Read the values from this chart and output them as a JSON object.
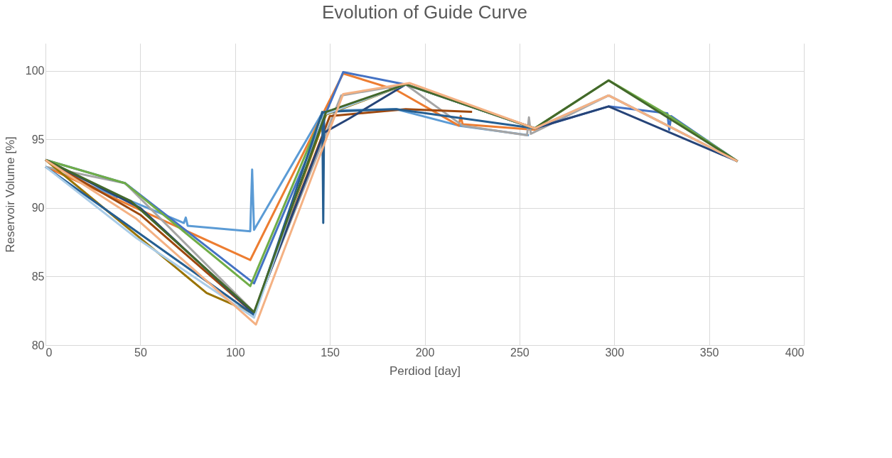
{
  "chart_data": {
    "type": "line",
    "title": "Evolution of Guide Curve",
    "xlabel": "Perdiod [day]",
    "ylabel": "Reservoir Volume [%]",
    "xlim": [
      0,
      400
    ],
    "xticks": [
      0,
      50,
      100,
      150,
      200,
      250,
      300,
      350,
      400
    ],
    "ylim": [
      80,
      102
    ],
    "yticks": [
      80,
      85,
      90,
      95,
      100
    ],
    "grid": true,
    "legend": false,
    "marker": "none",
    "line_style": "solid",
    "series": [
      {
        "color": "#5b9bd5",
        "x": [
          0,
          36,
          37,
          38,
          73,
          74,
          75,
          108,
          109,
          110,
          145,
          150,
          185,
          218,
          255
        ],
        "values": [
          93.0,
          90.9,
          90.6,
          90.9,
          88.9,
          89.3,
          88.7,
          88.3,
          92.8,
          88.4,
          96.7,
          97.1,
          97.2,
          96.0,
          95.3
        ]
      },
      {
        "color": "#ed7d31",
        "x": [
          0,
          108,
          145,
          157,
          185,
          218,
          219,
          220,
          258,
          297,
          365
        ],
        "values": [
          93.0,
          86.2,
          96.5,
          99.8,
          98.6,
          96.0,
          96.7,
          96.1,
          95.7,
          98.2,
          93.4
        ]
      },
      {
        "color": "#a5a5a5",
        "x": [
          0,
          42,
          110,
          156,
          190,
          220,
          254,
          255,
          256,
          297,
          365
        ],
        "values": [
          93.0,
          91.8,
          82.4,
          98.2,
          99.0,
          96.0,
          95.3,
          96.6,
          95.4,
          98.2,
          93.4
        ]
      },
      {
        "color": "#4472c4",
        "x": [
          0,
          42,
          110,
          157,
          190,
          258,
          297,
          328,
          329,
          330,
          365
        ],
        "values": [
          93.5,
          91.8,
          84.5,
          99.9,
          99.0,
          95.8,
          97.4,
          96.9,
          95.7,
          96.7,
          93.4
        ]
      },
      {
        "color": "#70ad47",
        "x": [
          0,
          42,
          108,
          146,
          190,
          258,
          297,
          328,
          365
        ],
        "values": [
          93.5,
          91.8,
          84.3,
          96.8,
          99.0,
          95.8,
          99.3,
          96.8,
          93.4
        ]
      },
      {
        "color": "#997300",
        "x": [
          0,
          85,
          110,
          148,
          190
        ],
        "values": [
          93.5,
          83.8,
          82.3,
          96.8,
          99.0
        ]
      },
      {
        "color": "#9e480e",
        "x": [
          0,
          50,
          110,
          150,
          190,
          225
        ],
        "values": [
          93.5,
          89.5,
          82.3,
          96.7,
          97.2,
          97.0
        ]
      },
      {
        "color": "#264478",
        "x": [
          0,
          50,
          110,
          147,
          160,
          190,
          258,
          297,
          365
        ],
        "values": [
          93.5,
          90.0,
          82.3,
          95.5,
          96.5,
          99.0,
          95.8,
          97.4,
          93.4
        ]
      },
      {
        "color": "#255e91",
        "x": [
          0,
          110,
          146,
          146.5,
          147,
          185,
          258
        ],
        "values": [
          93.0,
          82.2,
          97.0,
          88.9,
          97.0,
          97.2,
          95.8
        ]
      },
      {
        "color": "#a9cce8",
        "x": [
          0,
          48,
          110,
          147,
          190,
          258,
          297,
          365
        ],
        "values": [
          93.0,
          87.8,
          82.0,
          96.8,
          99.0,
          95.8,
          98.2,
          93.4
        ]
      },
      {
        "color": "#43682b",
        "x": [
          0,
          45,
          110,
          148,
          190,
          258,
          297,
          365
        ],
        "values": [
          93.5,
          90.5,
          82.4,
          97.0,
          99.0,
          95.8,
          99.3,
          93.4
        ]
      },
      {
        "color": "#f4b183",
        "x": [
          0,
          48,
          111,
          157,
          192,
          258,
          297,
          365
        ],
        "values": [
          93.5,
          89.2,
          81.5,
          98.3,
          99.1,
          95.8,
          98.2,
          93.4
        ]
      }
    ]
  }
}
